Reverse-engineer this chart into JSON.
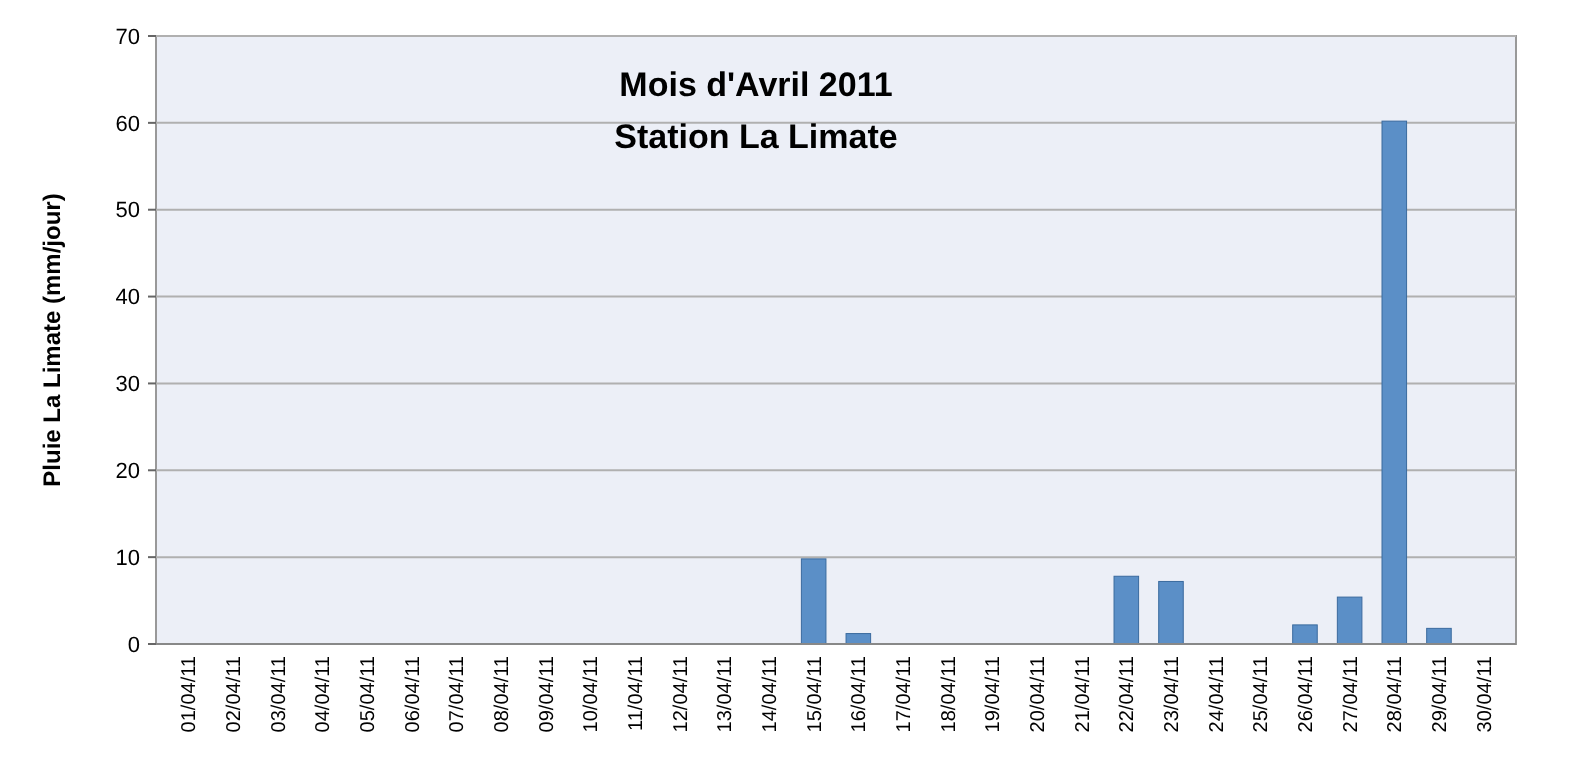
{
  "chart_data": {
    "type": "bar",
    "title": "Mois d'Avril 2011",
    "subtitle": "Station La Limate",
    "ylabel": "Pluie La Limate (mm/jour)",
    "categories": [
      "01/04/11",
      "02/04/11",
      "03/04/11",
      "04/04/11",
      "05/04/11",
      "06/04/11",
      "07/04/11",
      "08/04/11",
      "09/04/11",
      "10/04/11",
      "11/04/11",
      "12/04/11",
      "13/04/11",
      "14/04/11",
      "15/04/11",
      "16/04/11",
      "17/04/11",
      "18/04/11",
      "19/04/11",
      "20/04/11",
      "21/04/11",
      "22/04/11",
      "23/04/11",
      "24/04/11",
      "25/04/11",
      "26/04/11",
      "27/04/11",
      "28/04/11",
      "29/04/11",
      "30/04/11"
    ],
    "values": [
      0,
      0,
      0,
      0,
      0,
      0,
      0,
      0,
      0,
      0,
      0,
      0,
      0,
      0,
      9.8,
      1.2,
      0,
      0,
      0,
      0,
      0,
      7.8,
      7.2,
      0,
      0,
      2.2,
      5.4,
      60.2,
      1.8,
      0
    ],
    "color": "#5b8fc7",
    "ylim": [
      0,
      70
    ],
    "yticks": [
      0,
      10,
      20,
      30,
      40,
      50,
      60,
      70
    ],
    "grid": "y"
  }
}
